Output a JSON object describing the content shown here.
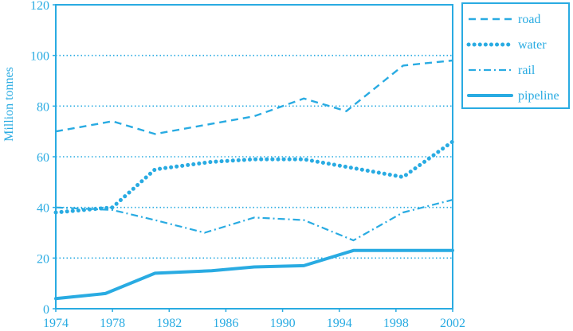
{
  "chart_data": {
    "type": "line",
    "title": "",
    "xlabel": "",
    "ylabel": "Million tonnes",
    "x": [
      1974,
      1978,
      1982,
      1986,
      1990,
      1994,
      1998,
      2002
    ],
    "xlim": [
      1974,
      2002
    ],
    "ylim": [
      0,
      120
    ],
    "yticks": [
      0,
      20,
      40,
      60,
      80,
      100,
      120
    ],
    "grid": "horizontal dotted at 20, 40, 60, 80, 100",
    "legend_position": "top-right, outside plot",
    "accent_color": "#29abe2",
    "series": [
      {
        "name": "road",
        "style": "dashed",
        "points": [
          [
            1974,
            70
          ],
          [
            1978,
            74
          ],
          [
            1981,
            69
          ],
          [
            1985,
            73
          ],
          [
            1988,
            76
          ],
          [
            1991.5,
            83
          ],
          [
            1994.5,
            78
          ],
          [
            1998.5,
            96
          ],
          [
            2002,
            98
          ]
        ]
      },
      {
        "name": "water",
        "style": "dotted",
        "points": [
          [
            1974,
            38
          ],
          [
            1978,
            40
          ],
          [
            1981,
            55
          ],
          [
            1985,
            58
          ],
          [
            1988,
            59
          ],
          [
            1991.5,
            59
          ],
          [
            1994.5,
            56
          ],
          [
            1998.5,
            52
          ],
          [
            2002,
            66
          ]
        ]
      },
      {
        "name": "rail",
        "style": "dash-dot",
        "points": [
          [
            1974,
            40
          ],
          [
            1978,
            39
          ],
          [
            1981,
            35
          ],
          [
            1984.5,
            30
          ],
          [
            1988,
            36
          ],
          [
            1991.5,
            35
          ],
          [
            1995,
            27
          ],
          [
            1998.5,
            38
          ],
          [
            2002,
            43
          ]
        ]
      },
      {
        "name": "pipeline",
        "style": "solid",
        "points": [
          [
            1974,
            4
          ],
          [
            1977.5,
            6
          ],
          [
            1981,
            14
          ],
          [
            1985,
            15
          ],
          [
            1988,
            16.5
          ],
          [
            1991.5,
            17
          ],
          [
            1995,
            23
          ],
          [
            1998.5,
            23
          ],
          [
            2002,
            23
          ]
        ]
      }
    ]
  }
}
